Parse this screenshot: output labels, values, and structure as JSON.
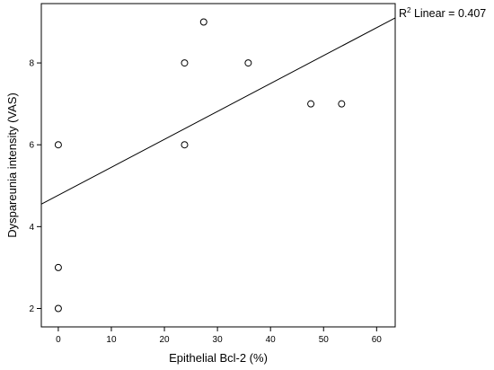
{
  "chart_data": {
    "type": "scatter",
    "title": "",
    "xlabel": "Epithelial Bcl-2 (%)",
    "ylabel": "Dyspareunia intensity (VAS)",
    "xlim": [
      -3.2,
      63.5
    ],
    "ylim": [
      1.55,
      9.45
    ],
    "x_ticks": [
      0,
      10,
      20,
      30,
      40,
      50,
      60
    ],
    "y_ticks": [
      2,
      4,
      6,
      8
    ],
    "grid": false,
    "points": [
      {
        "x": 0,
        "y": 6
      },
      {
        "x": 0,
        "y": 3
      },
      {
        "x": 0,
        "y": 2
      },
      {
        "x": 23.8,
        "y": 8
      },
      {
        "x": 23.8,
        "y": 6
      },
      {
        "x": 27.4,
        "y": 9
      },
      {
        "x": 35.8,
        "y": 8
      },
      {
        "x": 47.6,
        "y": 7
      },
      {
        "x": 53.4,
        "y": 7
      }
    ],
    "fit_line": {
      "label_r": "R",
      "label_sup": "2",
      "label_rest": " Linear = 0.407",
      "start": {
        "x": -3.2,
        "y": 4.55
      },
      "end": {
        "x": 63.5,
        "y": 9.1
      }
    },
    "colors": {
      "marker_stroke": "#000000",
      "marker_fill": "#ffffff",
      "line": "#000000",
      "frame": "#000000"
    }
  }
}
